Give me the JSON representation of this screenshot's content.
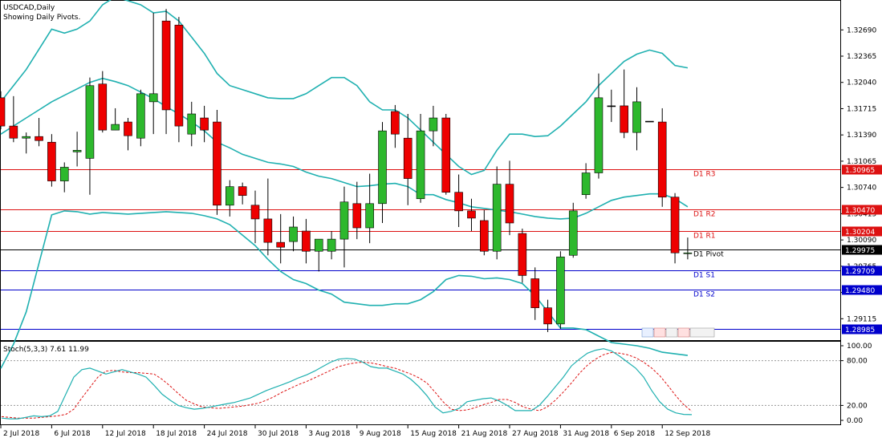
{
  "header": {
    "symbol_line": "USDCAD,Daily",
    "subtitle": "Showing Daily Pivots."
  },
  "indicator": {
    "label": "Stoch(5,3,3) 7.61 11.99"
  },
  "colors": {
    "background": "#ffffff",
    "bull_candle": "#2db82d",
    "bear_candle": "#ee0000",
    "bands": "#1fb0b0",
    "resistance_line": "#dd1111",
    "support_line": "#0000cc",
    "pivot_line": "#000000",
    "stoch_main": "#1fb0b0",
    "stoch_signal": "#dd1111"
  },
  "chart_data": [
    {
      "type": "candlestick",
      "symbol": "USDCAD",
      "timeframe": "Daily",
      "x_labels": [
        "2 Jul 2018",
        "6 Jul 2018",
        "12 Jul 2018",
        "18 Jul 2018",
        "24 Jul 2018",
        "30 Jul 2018",
        "3 Aug 2018",
        "9 Aug 2018",
        "15 Aug 2018",
        "21 Aug 2018",
        "27 Aug 2018",
        "31 Aug 2018",
        "6 Sep 2018",
        "12 Sep 2018"
      ],
      "x_label_index": [
        0,
        4,
        8,
        12,
        16,
        20,
        24,
        28,
        32,
        36,
        40,
        44,
        48,
        52
      ],
      "y_ticks": [
        "1.32690",
        "1.32365",
        "1.32040",
        "1.31715",
        "1.31390",
        "1.31065",
        "1.30740",
        "1.30415",
        "1.30090",
        "1.29765",
        "1.29440",
        "1.29115"
      ],
      "ylim": [
        1.2885,
        1.3305
      ],
      "candles": [
        [
          1.3185,
          1.3193,
          1.3146,
          1.315
        ],
        [
          1.315,
          1.3187,
          1.313,
          1.3135
        ],
        [
          1.3135,
          1.3142,
          1.3116,
          1.3137
        ],
        [
          1.3137,
          1.316,
          1.3125,
          1.3132
        ],
        [
          1.313,
          1.314,
          1.3075,
          1.3082
        ],
        [
          1.3082,
          1.3105,
          1.3068,
          1.3099
        ],
        [
          1.3118,
          1.3143,
          1.31,
          1.312
        ],
        [
          1.311,
          1.321,
          1.3065,
          1.32
        ],
        [
          1.3202,
          1.3218,
          1.3142,
          1.3145
        ],
        [
          1.3145,
          1.3172,
          1.3145,
          1.3152
        ],
        [
          1.3155,
          1.316,
          1.312,
          1.3138
        ],
        [
          1.3135,
          1.3195,
          1.3125,
          1.319
        ],
        [
          1.318,
          1.329,
          1.314,
          1.319
        ],
        [
          1.328,
          1.3295,
          1.314,
          1.317
        ],
        [
          1.3275,
          1.3285,
          1.313,
          1.315
        ],
        [
          1.314,
          1.318,
          1.3125,
          1.3165
        ],
        [
          1.316,
          1.3175,
          1.313,
          1.3145
        ],
        [
          1.3155,
          1.317,
          1.304,
          1.3052
        ],
        [
          1.3052,
          1.3083,
          1.3038,
          1.3075
        ],
        [
          1.3075,
          1.308,
          1.3053,
          1.3064
        ],
        [
          1.3052,
          1.307,
          1.3005,
          1.3035
        ],
        [
          1.3035,
          1.3085,
          1.299,
          1.3006
        ],
        [
          1.3006,
          1.3041,
          1.298,
          1.3
        ],
        [
          1.3007,
          1.3038,
          1.2995,
          1.3025
        ],
        [
          1.302,
          1.3035,
          1.298,
          1.2995
        ],
        [
          1.2995,
          1.301,
          1.297,
          1.301
        ],
        [
          1.2995,
          1.302,
          1.2985,
          1.301
        ],
        [
          1.301,
          1.3075,
          1.2975,
          1.3056
        ],
        [
          1.3054,
          1.3081,
          1.301,
          1.3024
        ],
        [
          1.3024,
          1.3091,
          1.3005,
          1.3054
        ],
        [
          1.3054,
          1.3155,
          1.303,
          1.3144
        ],
        [
          1.3168,
          1.3176,
          1.3123,
          1.314
        ],
        [
          1.3135,
          1.3165,
          1.3052,
          1.3085
        ],
        [
          1.306,
          1.3165,
          1.3055,
          1.3144
        ],
        [
          1.3144,
          1.3175,
          1.3125,
          1.316
        ],
        [
          1.316,
          1.3165,
          1.3065,
          1.3068
        ],
        [
          1.3068,
          1.309,
          1.3025,
          1.3045
        ],
        [
          1.3045,
          1.306,
          1.302,
          1.3036
        ],
        [
          1.3033,
          1.3046,
          1.299,
          1.2995
        ],
        [
          1.2995,
          1.31,
          1.2985,
          1.3078
        ],
        [
          1.3078,
          1.3107,
          1.3015,
          1.303
        ],
        [
          1.3017,
          1.3023,
          1.2956,
          1.2965
        ],
        [
          1.2961,
          1.2975,
          1.291,
          1.2925
        ],
        [
          1.2925,
          1.2935,
          1.2895,
          1.2905
        ],
        [
          1.2905,
          1.2995,
          1.2899,
          1.2988
        ],
        [
          1.299,
          1.3055,
          1.2987,
          1.3045
        ],
        [
          1.3065,
          1.3104,
          1.306,
          1.3092
        ],
        [
          1.3092,
          1.3215,
          1.3085,
          1.3185
        ],
        [
          1.3175,
          1.3195,
          1.3155,
          1.3175
        ],
        [
          1.3175,
          1.322,
          1.3135,
          1.3142
        ],
        [
          1.3142,
          1.3198,
          1.312,
          1.318
        ],
        [
          1.3156,
          1.3156,
          1.3156,
          1.3156
        ],
        [
          1.3155,
          1.3172,
          1.305,
          1.3062
        ],
        [
          1.3062,
          1.3067,
          1.298,
          1.2993
        ],
        [
          1.2992,
          1.3012,
          1.2985,
          1.2993
        ]
      ],
      "bollinger_upper": [
        1.318,
        1.32,
        1.322,
        1.3245,
        1.327,
        1.3265,
        1.327,
        1.328,
        1.33,
        1.331,
        1.3305,
        1.33,
        1.329,
        1.3292,
        1.328,
        1.326,
        1.324,
        1.3215,
        1.32,
        1.3195,
        1.319,
        1.3185,
        1.3184,
        1.3184,
        1.319,
        1.32,
        1.321,
        1.321,
        1.32,
        1.318,
        1.317,
        1.317,
        1.316,
        1.3145,
        1.313,
        1.3115,
        1.31,
        1.309,
        1.3095,
        1.312,
        1.314,
        1.314,
        1.3137,
        1.3138,
        1.315,
        1.3165,
        1.318,
        1.32,
        1.3215,
        1.323,
        1.3239,
        1.3244,
        1.324,
        1.3225,
        1.3222
      ],
      "bollinger_middle": [
        1.314,
        1.315,
        1.316,
        1.317,
        1.318,
        1.3188,
        1.3196,
        1.3204,
        1.3209,
        1.3205,
        1.32,
        1.3192,
        1.3184,
        1.3174,
        1.3165,
        1.3155,
        1.3144,
        1.313,
        1.3123,
        1.3115,
        1.311,
        1.3105,
        1.3103,
        1.31,
        1.3093,
        1.3088,
        1.3085,
        1.308,
        1.3075,
        1.3076,
        1.3078,
        1.3079,
        1.3075,
        1.3065,
        1.3065,
        1.3059,
        1.3055,
        1.305,
        1.3048,
        1.3046,
        1.3044,
        1.3041,
        1.3038,
        1.3036,
        1.3035,
        1.3036,
        1.3042,
        1.305,
        1.3058,
        1.3062,
        1.3064,
        1.3066,
        1.3066,
        1.306,
        1.305
      ],
      "bollinger_lower": [
        1.285,
        1.288,
        1.292,
        1.298,
        1.304,
        1.3045,
        1.3044,
        1.3041,
        1.3043,
        1.3042,
        1.3041,
        1.3042,
        1.3043,
        1.3044,
        1.3043,
        1.3042,
        1.3039,
        1.3035,
        1.3028,
        1.3015,
        1.3002,
        1.2985,
        1.297,
        1.296,
        1.2955,
        1.2947,
        1.2942,
        1.2932,
        1.293,
        1.2928,
        1.2928,
        1.293,
        1.293,
        1.2935,
        1.2945,
        1.296,
        1.2965,
        1.2964,
        1.2961,
        1.2962,
        1.296,
        1.2955,
        1.294,
        1.292,
        1.29,
        1.29,
        1.2898,
        1.289,
        1.2882,
        1.288,
        1.2878,
        1.2875,
        1.287,
        1.2868,
        1.2866
      ],
      "pivots": [
        {
          "name": "D1 R3",
          "value": 1.30965,
          "tag": "1.30965"
        },
        {
          "name": "D1 R2",
          "value": 1.3047,
          "tag": "1.30470"
        },
        {
          "name": "D1 R1",
          "value": 1.30204,
          "tag": "1.30204"
        },
        {
          "name": "D1 Pivot",
          "value": 1.29975,
          "tag": "1.29975"
        },
        {
          "name": "D1 S1",
          "value": 1.29709,
          "tag": "1.29709"
        },
        {
          "name": "D1 S2",
          "value": 1.2948,
          "tag": "1.29480"
        },
        {
          "name": "",
          "value": 1.28985,
          "tag": "1.28985"
        }
      ],
      "partial_tick_label": "1.30415"
    },
    {
      "type": "line",
      "name": "Stoch(5,3,3)",
      "main_value": 7.61,
      "signal_value": 11.99,
      "y_ticks": [
        "100.00",
        "80.00",
        "20.00",
        "0.00"
      ],
      "levels": [
        80,
        20
      ],
      "ylim": [
        0,
        100
      ],
      "main": [
        3,
        2,
        2,
        4,
        6,
        5,
        6,
        12,
        35,
        58,
        68,
        70,
        66,
        62,
        65,
        68,
        65,
        62,
        58,
        47,
        35,
        27,
        20,
        17,
        15,
        16,
        18,
        20,
        22,
        24,
        27,
        30,
        35,
        40,
        44,
        48,
        52,
        57,
        61,
        66,
        72,
        78,
        82,
        83,
        82,
        78,
        72,
        70,
        70,
        66,
        62,
        55,
        45,
        33,
        18,
        10,
        12,
        16,
        25,
        27,
        29,
        30,
        26,
        20,
        13,
        13,
        13,
        20,
        32,
        45,
        58,
        73,
        82,
        90,
        94,
        96,
        93,
        86,
        78,
        70,
        58,
        40,
        25,
        15,
        10,
        8,
        7.61
      ],
      "signal": [
        5,
        4,
        3,
        3,
        3,
        4,
        5,
        6,
        8,
        15,
        30,
        44,
        58,
        66,
        67,
        65,
        64,
        64,
        63,
        62,
        55,
        46,
        36,
        27,
        22,
        18,
        17,
        16,
        17,
        18,
        19,
        21,
        23,
        27,
        32,
        38,
        43,
        48,
        52,
        57,
        62,
        67,
        72,
        75,
        77,
        78,
        77,
        75,
        72,
        70,
        66,
        62,
        57,
        50,
        38,
        25,
        15,
        13,
        14,
        17,
        21,
        24,
        28,
        28,
        24,
        18,
        15,
        13,
        18,
        27,
        38,
        50,
        63,
        74,
        82,
        88,
        91,
        90,
        88,
        84,
        78,
        70,
        60,
        47,
        33,
        21,
        11.99
      ]
    }
  ]
}
